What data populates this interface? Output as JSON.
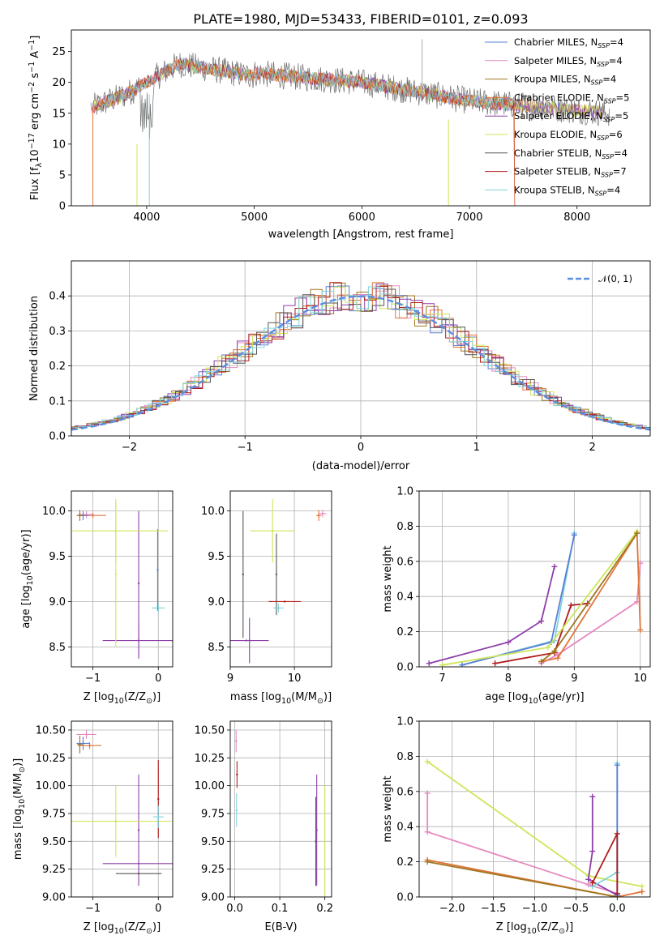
{
  "figure": {
    "title": "PLATE=1980, MJD=53433, FIBERID=0101, z=0.093"
  },
  "chart_data": [
    {
      "id": "spectrum",
      "type": "line",
      "xlabel": "wavelength [Angstrom, rest frame]",
      "ylabel_parts": [
        "Flux [f",
        "λ",
        "10",
        "−17",
        " erg cm",
        "−2",
        " s",
        "−1",
        " A",
        "−1",
        "]"
      ],
      "xlim": [
        3300,
        8680
      ],
      "ylim": [
        0,
        28.5
      ],
      "xticks": [
        4000,
        5000,
        6000,
        7000,
        8000
      ],
      "yticks": [
        0,
        5,
        10,
        15,
        20,
        25
      ],
      "legend_placement": "top-right",
      "series": [
        {
          "name": "Chabrier MILES, N",
          "sub": "SSP",
          "suffix": "=4",
          "color": "#5a7fd6"
        },
        {
          "name": "Salpeter MILES, N",
          "sub": "SSP",
          "suffix": "=4",
          "color": "#e58ac0"
        },
        {
          "name": "Kroupa MILES, N",
          "sub": "SSP",
          "suffix": "=4",
          "color": "#a0761f"
        },
        {
          "name": "Chabrier ELODIE, N",
          "sub": "SSP",
          "suffix": "=5",
          "color": "#e0743a"
        },
        {
          "name": "Salpeter ELODIE, N",
          "sub": "SSP",
          "suffix": "=5",
          "color": "#8e3fa8"
        },
        {
          "name": "Kroupa ELODIE, N",
          "sub": "SSP",
          "suffix": "=6",
          "color": "#cde65a"
        },
        {
          "name": "Chabrier STELIB, N",
          "sub": "SSP",
          "suffix": "=4",
          "color": "#555555"
        },
        {
          "name": "Salpeter STELIB, N",
          "sub": "SSP",
          "suffix": "=7",
          "color": "#b01c1c"
        },
        {
          "name": "Kroupa STELIB, N",
          "sub": "SSP",
          "suffix": "=4",
          "color": "#7fd3dc"
        }
      ]
    },
    {
      "id": "residuals",
      "type": "histogram",
      "xlabel": "(data-model)/error",
      "ylabel": "Normed distribution",
      "xlim": [
        -2.5,
        2.5
      ],
      "ylim": [
        0,
        0.5
      ],
      "xticks": [
        -2,
        -1,
        0,
        1,
        2
      ],
      "yticks": [
        0.0,
        0.1,
        0.2,
        0.3,
        0.4
      ],
      "grid": true,
      "legend_placement": "top-right",
      "reference_curve": {
        "name": "𝒩(0, 1)",
        "color": "#5b8fe0",
        "style": "dashed"
      }
    },
    {
      "id": "age-vs-Z",
      "type": "errorbar",
      "xlabel_parts": [
        "Z [log",
        "10",
        "(Z/Z",
        "⊙",
        ")]"
      ],
      "ylabel_parts": [
        "age  [log",
        "10",
        "(age/yr)]"
      ],
      "xlim": [
        -1.33,
        0.22
      ],
      "ylim": [
        8.28,
        10.22
      ],
      "xticks": [
        -1,
        0
      ],
      "yticks": [
        8.5,
        9.0,
        9.5,
        10.0
      ],
      "grid": true,
      "points": [
        {
          "x": 0.0,
          "y": 8.93,
          "xerr": 0.1,
          "yerr": 0.05,
          "color": "#7fd3dc"
        },
        {
          "x": -0.01,
          "y": 9.35,
          "xerr": 0.0,
          "yerr": 0.45,
          "color": "#5a7fd6"
        },
        {
          "x": -0.3,
          "y": 9.2,
          "xerr": 0.0,
          "yerr": 0.8,
          "color": "#8e3fa8"
        },
        {
          "x": -0.3,
          "y": 8.57,
          "xerr": 0.55,
          "yerr": 0.2,
          "color": "#8e3fa8"
        },
        {
          "x": -0.65,
          "y": 9.78,
          "xerr": 0.8,
          "yerr": 0.35,
          "color": "#cde65a"
        },
        {
          "x": -0.65,
          "y": 9.3,
          "xerr": 0.0,
          "yerr": 0.8,
          "color": "#cde65a"
        },
        {
          "x": -1.0,
          "y": 9.95,
          "xerr": 0.2,
          "yerr": 0.03,
          "color": "#e0743a"
        },
        {
          "x": -1.1,
          "y": 9.96,
          "xerr": 0.12,
          "yerr": 0.04,
          "color": "#e58ac0"
        },
        {
          "x": -1.15,
          "y": 9.95,
          "xerr": 0.08,
          "yerr": 0.05,
          "color": "#5a7fd6"
        },
        {
          "x": -1.2,
          "y": 9.95,
          "xerr": 0.05,
          "yerr": 0.06,
          "color": "#a0761f"
        }
      ]
    },
    {
      "id": "age-vs-mass",
      "type": "errorbar",
      "xlabel_parts": [
        "mass [log",
        "10",
        "(M/M",
        "⊙",
        ")]"
      ],
      "xlim": [
        9.0,
        10.58
      ],
      "ylim": [
        8.28,
        10.22
      ],
      "xticks": [
        9,
        10
      ],
      "yticks": [
        8.5,
        9.0,
        9.5,
        10.0
      ],
      "grid": true,
      "points": [
        {
          "x": 9.2,
          "y": 9.3,
          "xerr": 0.0,
          "yerr": 0.7,
          "color": "#555555"
        },
        {
          "x": 9.3,
          "y": 8.57,
          "xerr": 0.0,
          "yerr": 0.25,
          "color": "#8e3fa8"
        },
        {
          "x": 9.25,
          "y": 8.57,
          "xerr": 0.35,
          "yerr": 0.0,
          "color": "#8e3fa8"
        },
        {
          "x": 9.66,
          "y": 9.78,
          "xerr": 0.35,
          "yerr": 0.35,
          "color": "#cde65a"
        },
        {
          "x": 9.72,
          "y": 9.3,
          "xerr": 0.0,
          "yerr": 0.45,
          "color": "#555555"
        },
        {
          "x": 9.75,
          "y": 8.93,
          "xerr": 0.08,
          "yerr": 0.05,
          "color": "#7fd3dc"
        },
        {
          "x": 9.85,
          "y": 9.0,
          "xerr": 0.25,
          "yerr": 0.0,
          "color": "#b01c1c"
        },
        {
          "x": 10.38,
          "y": 9.95,
          "xerr": 0.04,
          "yerr": 0.06,
          "color": "#e0743a"
        },
        {
          "x": 10.44,
          "y": 9.97,
          "xerr": 0.06,
          "yerr": 0.04,
          "color": "#e58ac0"
        }
      ]
    },
    {
      "id": "massweight-vs-age",
      "type": "line",
      "xlabel_parts": [
        "age  [log",
        "10",
        "(age/yr)]"
      ],
      "ylabel": "mass weight",
      "xlim": [
        6.65,
        10.15
      ],
      "ylim": [
        0,
        1.0
      ],
      "xticks": [
        7,
        8,
        9,
        10
      ],
      "yticks": [
        0.0,
        0.2,
        0.4,
        0.6,
        0.8,
        1.0
      ],
      "grid": true,
      "series": [
        {
          "name": "Salpeter ELODIE",
          "color": "#8e3fa8",
          "x": [
            6.8,
            8.0,
            8.5,
            8.7
          ],
          "y": [
            0.02,
            0.14,
            0.26,
            0.57
          ]
        },
        {
          "name": "Salpeter STELIB",
          "color": "#b01c1c",
          "x": [
            7.8,
            8.7,
            8.95,
            9.2
          ],
          "y": [
            0.02,
            0.08,
            0.35,
            0.36
          ]
        },
        {
          "name": "Kroupa STELIB",
          "color": "#7fd3dc",
          "x": [
            7.3,
            8.7,
            9.0
          ],
          "y": [
            0.01,
            0.15,
            0.76
          ]
        },
        {
          "name": "Chabrier MILES",
          "color": "#5a7fd6",
          "x": [
            7.3,
            8.65,
            9.0
          ],
          "y": [
            0.01,
            0.14,
            0.75
          ]
        },
        {
          "name": "Salpeter MILES",
          "color": "#e58ac0",
          "x": [
            8.5,
            8.75,
            9.95,
            10.0
          ],
          "y": [
            0.02,
            0.07,
            0.37,
            0.59
          ]
        },
        {
          "name": "Kroupa ELODIE",
          "color": "#cde65a",
          "x": [
            7.0,
            8.6,
            9.95
          ],
          "y": [
            0.01,
            0.11,
            0.77
          ]
        },
        {
          "name": "Chabrier ELODIE",
          "color": "#e0743a",
          "x": [
            8.5,
            8.75,
            9.95,
            10.0
          ],
          "y": [
            0.03,
            0.05,
            0.76,
            0.21
          ]
        },
        {
          "name": "Kroupa MILES",
          "color": "#a0761f",
          "x": [
            8.5,
            8.7,
            9.95
          ],
          "y": [
            0.03,
            0.09,
            0.76
          ]
        }
      ]
    },
    {
      "id": "mass-vs-Z",
      "type": "errorbar",
      "xlabel_parts": [
        "Z [log",
        "10",
        "(Z/Z",
        "⊙",
        ")]"
      ],
      "ylabel_parts": [
        "mass [log",
        "10",
        "(M/M",
        "⊙",
        ")]"
      ],
      "xlim": [
        -1.33,
        0.22
      ],
      "ylim": [
        9.0,
        10.58
      ],
      "xticks": [
        -1,
        0
      ],
      "yticks": [
        9.0,
        9.25,
        9.5,
        9.75,
        10.0,
        10.25,
        10.5
      ],
      "grid": true,
      "points": [
        {
          "x": -0.3,
          "y": 9.3,
          "xerr": 0.55,
          "yerr": 0.0,
          "color": "#8e3fa8"
        },
        {
          "x": -0.3,
          "y": 9.6,
          "xerr": 0.0,
          "yerr": 0.5,
          "color": "#8e3fa8"
        },
        {
          "x": -0.3,
          "y": 9.21,
          "xerr": 0.35,
          "yerr": 0.0,
          "color": "#555555"
        },
        {
          "x": -0.65,
          "y": 9.68,
          "xerr": 0.85,
          "yerr": 0.32,
          "color": "#cde65a"
        },
        {
          "x": 0.0,
          "y": 9.88,
          "xerr": 0.0,
          "yerr": 0.35,
          "color": "#b01c1c"
        },
        {
          "x": 0.0,
          "y": 9.72,
          "xerr": 0.08,
          "yerr": 0.1,
          "color": "#7fd3dc"
        },
        {
          "x": -1.1,
          "y": 10.46,
          "xerr": 0.15,
          "yerr": 0.04,
          "color": "#e58ac0"
        },
        {
          "x": -1.05,
          "y": 10.36,
          "xerr": 0.18,
          "yerr": 0.03,
          "color": "#e0743a"
        },
        {
          "x": -1.15,
          "y": 10.38,
          "xerr": 0.1,
          "yerr": 0.06,
          "color": "#5a7fd6"
        },
        {
          "x": -1.2,
          "y": 10.37,
          "xerr": 0.04,
          "yerr": 0.08,
          "color": "#a0761f"
        }
      ]
    },
    {
      "id": "mass-vs-EBV",
      "type": "errorbar",
      "xlabel": "E(B-V)",
      "xlim": [
        -0.01,
        0.215
      ],
      "ylim": [
        9.0,
        10.58
      ],
      "xticks": [
        0.0,
        0.1,
        0.2
      ],
      "yticks": [
        9.0,
        9.25,
        9.5,
        9.75,
        10.0,
        10.25,
        10.5
      ],
      "grid": true,
      "points": [
        {
          "x": 0.003,
          "y": 10.4,
          "xerr": 0.0,
          "yerr": 0.1,
          "color": "#e58ac0"
        },
        {
          "x": 0.005,
          "y": 10.1,
          "xerr": 0.0,
          "yerr": 0.12,
          "color": "#b01c1c"
        },
        {
          "x": 0.004,
          "y": 9.78,
          "xerr": 0.0,
          "yerr": 0.15,
          "color": "#7fd3dc"
        },
        {
          "x": 0.18,
          "y": 9.5,
          "xerr": 0.0,
          "yerr": 0.4,
          "color": "#555555"
        },
        {
          "x": 0.182,
          "y": 9.6,
          "xerr": 0.0,
          "yerr": 0.5,
          "color": "#8e3fa8"
        },
        {
          "x": 0.2,
          "y": 9.5,
          "xerr": 0.0,
          "yerr": 0.5,
          "color": "#cde65a"
        }
      ]
    },
    {
      "id": "massweight-vs-Z",
      "type": "line",
      "xlabel_parts": [
        "Z [log",
        "10",
        "(Z/Z",
        "⊙",
        ")]"
      ],
      "ylabel": "mass weight",
      "xlim": [
        -2.4,
        0.4
      ],
      "ylim": [
        0,
        1.0
      ],
      "xticks": [
        -2.0,
        -1.5,
        -1.0,
        -0.5,
        0.0
      ],
      "xtick_labels": [
        "−2.0",
        "−1.5",
        "−1.0",
        "−0.5",
        "0.0"
      ],
      "yticks": [
        0.0,
        0.2,
        0.4,
        0.6,
        0.8,
        1.0
      ],
      "grid": true,
      "series": [
        {
          "name": "Kroupa ELODIE",
          "color": "#cde65a",
          "x": [
            -2.3,
            -0.35,
            0.3
          ],
          "y": [
            0.77,
            0.12,
            0.06
          ]
        },
        {
          "name": "Salpeter MILES",
          "color": "#e58ac0",
          "x": [
            -2.3,
            -2.3,
            -0.35,
            0.0
          ],
          "y": [
            0.59,
            0.37,
            0.07,
            0.02
          ]
        },
        {
          "name": "Chabrier ELODIE",
          "color": "#e0743a",
          "x": [
            -2.3,
            0.0,
            0.3
          ],
          "y": [
            0.21,
            0.0,
            0.03
          ]
        },
        {
          "name": "Kroupa MILES",
          "color": "#a0761f",
          "x": [
            -2.3,
            0.0
          ],
          "y": [
            0.2,
            0.0
          ]
        },
        {
          "name": "Salpeter ELODIE",
          "color": "#8e3fa8",
          "x": [
            -0.3,
            -0.3,
            -0.35,
            0.0
          ],
          "y": [
            0.57,
            0.26,
            0.1,
            0.01
          ]
        },
        {
          "name": "Kroupa STELIB",
          "color": "#7fd3dc",
          "x": [
            0.0,
            0.0,
            -0.3
          ],
          "y": [
            0.76,
            0.14,
            0.06
          ]
        },
        {
          "name": "Chabrier MILES",
          "color": "#5a7fd6",
          "x": [
            0.0,
            0.0
          ],
          "y": [
            0.75,
            0.01
          ]
        },
        {
          "name": "Salpeter STELIB",
          "color": "#b01c1c",
          "x": [
            -0.3,
            0.0,
            0.0
          ],
          "y": [
            0.08,
            0.36,
            0.02
          ]
        }
      ]
    }
  ]
}
